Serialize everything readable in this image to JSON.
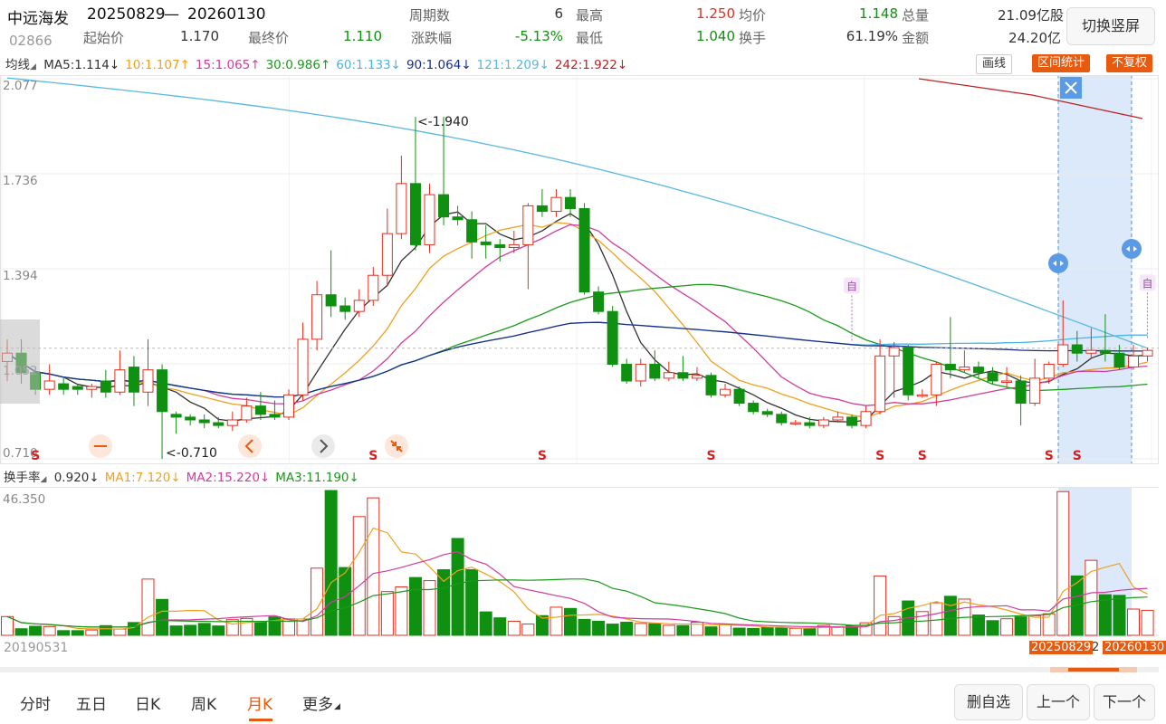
{
  "header": {
    "stock_name": "中远海发",
    "range_start": "20250829",
    "range_sep": "—",
    "range_end": "20260130",
    "code": "02866",
    "swap_button": "切换竖屏",
    "fields": [
      {
        "label": "周期数",
        "value": "6",
        "tone": "gray"
      },
      {
        "label": "最高",
        "value": "1.250",
        "tone": "up"
      },
      {
        "label": "均价",
        "value": "1.148",
        "tone": "dn"
      },
      {
        "label": "总量",
        "value": "21.09亿股",
        "tone": "gray"
      },
      {
        "label": "起始价",
        "value": "1.170",
        "tone": "gray"
      },
      {
        "label": "最终价",
        "value": "1.110",
        "tone": "dn"
      },
      {
        "label": "涨跌幅",
        "value": "-5.13%",
        "tone": "dn"
      },
      {
        "label": "最低",
        "value": "1.040",
        "tone": "dn"
      },
      {
        "label": "换手",
        "value": "61.19%",
        "tone": "gray"
      },
      {
        "label": "金额",
        "value": "24.20亿",
        "tone": "gray"
      }
    ]
  },
  "ma_bar": {
    "type_label": "均线",
    "items": [
      {
        "text": "MA5:1.114↓",
        "color": "#333333"
      },
      {
        "text": "10:1.107↑",
        "color": "#f0a020"
      },
      {
        "text": "15:1.065↑",
        "color": "#d03ca0"
      },
      {
        "text": "30:0.986↑",
        "color": "#1a9a1a"
      },
      {
        "text": "60:1.133↓",
        "color": "#4ab4e6"
      },
      {
        "text": "90:1.064↓",
        "color": "#1a2f8a"
      },
      {
        "text": "121:1.209↓",
        "color": "#58b8e0"
      },
      {
        "text": "242:1.922↓",
        "color": "#c02020"
      }
    ],
    "draw_btn": "画线",
    "range_stat_btn": "区间统计",
    "no_adjust_btn": "不复权"
  },
  "price_axis": [
    "2.077",
    "1.736",
    "1.394",
    "1.052",
    "0.710"
  ],
  "annotations": {
    "high": "<-1.940",
    "low": "<-0.710"
  },
  "signals": {
    "s": "S",
    "zi": "自"
  },
  "volume_bar": {
    "type_label": "换手率",
    "items": [
      {
        "text": "0.920↓",
        "color": "#333333"
      },
      {
        "text": "MA1:7.120↓",
        "color": "#f0a020"
      },
      {
        "text": "MA2:15.220↓",
        "color": "#d03ca0"
      },
      {
        "text": "MA3:11.190↓",
        "color": "#1a9a1a"
      }
    ],
    "axis_top": "46.350"
  },
  "dates": {
    "first": "20190531",
    "sel_start": "20250829",
    "sel_mid": "2",
    "sel_end": "20260130"
  },
  "tabs": [
    "分时",
    "五日",
    "日K",
    "周K",
    "月K",
    "更多"
  ],
  "active_tab": "月K",
  "footer": {
    "watch": "删自选",
    "prev": "上一个",
    "next": "下一个"
  },
  "colors": {
    "up": "#e03020",
    "down": "#109010",
    "accent": "#e85a10",
    "selection": "#dbe9fb"
  },
  "chart_data": {
    "type": "candlestick",
    "period": "monthly",
    "ylim": [
      0.71,
      2.077
    ],
    "y_ticks": [
      2.077,
      1.736,
      1.394,
      1.052,
      0.71
    ],
    "candles": [
      [
        1.06,
        1.09,
        1.14,
        0.99
      ],
      [
        1.09,
        1.02,
        1.14,
        0.98
      ],
      [
        1.02,
        0.96,
        1.04,
        0.94
      ],
      [
        0.96,
        0.99,
        1.05,
        0.94
      ],
      [
        0.98,
        0.96,
        1.0,
        0.94
      ],
      [
        0.97,
        0.96,
        0.98,
        0.94
      ],
      [
        0.96,
        0.97,
        0.98,
        0.93
      ],
      [
        0.99,
        0.95,
        1.03,
        0.93
      ],
      [
        0.95,
        1.03,
        1.1,
        0.94
      ],
      [
        1.04,
        0.95,
        1.08,
        0.9
      ],
      [
        0.95,
        1.03,
        1.14,
        0.9
      ],
      [
        1.03,
        0.88,
        1.05,
        0.71
      ],
      [
        0.87,
        0.86,
        0.88,
        0.8
      ],
      [
        0.86,
        0.85,
        0.87,
        0.83
      ],
      [
        0.85,
        0.84,
        0.87,
        0.82
      ],
      [
        0.84,
        0.83,
        0.86,
        0.82
      ],
      [
        0.83,
        0.85,
        0.88,
        0.81
      ],
      [
        0.85,
        0.9,
        0.93,
        0.84
      ],
      [
        0.9,
        0.87,
        0.95,
        0.85
      ],
      [
        0.87,
        0.86,
        0.92,
        0.85
      ],
      [
        0.86,
        0.94,
        0.96,
        0.85
      ],
      [
        0.94,
        1.14,
        1.2,
        0.92
      ],
      [
        1.14,
        1.3,
        1.35,
        1.1
      ],
      [
        1.3,
        1.26,
        1.46,
        1.22
      ],
      [
        1.26,
        1.24,
        1.29,
        1.21
      ],
      [
        1.24,
        1.28,
        1.32,
        1.22
      ],
      [
        1.28,
        1.37,
        1.4,
        1.26
      ],
      [
        1.37,
        1.52,
        1.61,
        1.33
      ],
      [
        1.52,
        1.7,
        1.8,
        1.5
      ],
      [
        1.7,
        1.48,
        1.94,
        1.46
      ],
      [
        1.48,
        1.66,
        1.7,
        1.45
      ],
      [
        1.66,
        1.58,
        1.94,
        1.55
      ],
      [
        1.58,
        1.57,
        1.62,
        1.55
      ],
      [
        1.57,
        1.49,
        1.6,
        1.43
      ],
      [
        1.49,
        1.48,
        1.55,
        1.43
      ],
      [
        1.48,
        1.47,
        1.5,
        1.42
      ],
      [
        1.47,
        1.48,
        1.53,
        1.45
      ],
      [
        1.48,
        1.62,
        1.63,
        1.32
      ],
      [
        1.62,
        1.6,
        1.68,
        1.58
      ],
      [
        1.6,
        1.65,
        1.68,
        1.58
      ],
      [
        1.65,
        1.61,
        1.68,
        1.58
      ],
      [
        1.61,
        1.31,
        1.63,
        1.3
      ],
      [
        1.31,
        1.24,
        1.33,
        1.23
      ],
      [
        1.24,
        1.05,
        1.26,
        1.04
      ],
      [
        1.05,
        0.99,
        1.07,
        0.98
      ],
      [
        0.99,
        1.05,
        1.07,
        0.97
      ],
      [
        1.05,
        1.0,
        1.1,
        0.99
      ],
      [
        1.0,
        1.02,
        1.06,
        0.99
      ],
      [
        1.02,
        1.0,
        1.08,
        0.99
      ],
      [
        1.0,
        1.01,
        1.04,
        0.99
      ],
      [
        1.01,
        0.94,
        1.02,
        0.93
      ],
      [
        0.94,
        0.96,
        0.98,
        0.93
      ],
      [
        0.96,
        0.91,
        0.97,
        0.9
      ],
      [
        0.91,
        0.88,
        0.92,
        0.87
      ],
      [
        0.88,
        0.87,
        0.89,
        0.86
      ],
      [
        0.87,
        0.84,
        0.88,
        0.83
      ],
      [
        0.84,
        0.84,
        0.85,
        0.83
      ],
      [
        0.84,
        0.83,
        0.86,
        0.82
      ],
      [
        0.83,
        0.85,
        0.86,
        0.82
      ],
      [
        0.85,
        0.86,
        0.88,
        0.84
      ],
      [
        0.86,
        0.83,
        0.87,
        0.82
      ],
      [
        0.83,
        0.88,
        0.9,
        0.82
      ],
      [
        0.88,
        1.08,
        1.14,
        0.87
      ],
      [
        1.08,
        1.11,
        1.13,
        0.93
      ],
      [
        1.11,
        0.94,
        1.12,
        0.92
      ],
      [
        0.94,
        0.94,
        0.96,
        0.93
      ],
      [
        0.94,
        1.05,
        1.06,
        0.9
      ],
      [
        1.05,
        1.03,
        1.22,
        1.0
      ],
      [
        1.03,
        1.04,
        1.1,
        1.02
      ],
      [
        1.04,
        1.02,
        1.06,
        1.0
      ],
      [
        1.02,
        0.99,
        1.04,
        0.98
      ],
      [
        0.99,
        0.99,
        1.04,
        0.97
      ],
      [
        0.99,
        0.91,
        1.01,
        0.83
      ],
      [
        0.91,
        1.0,
        1.07,
        0.9
      ],
      [
        1.0,
        1.05,
        1.06,
        0.98
      ],
      [
        1.05,
        1.12,
        1.28,
        1.04
      ],
      [
        1.12,
        1.09,
        1.17,
        1.06
      ],
      [
        1.09,
        1.1,
        1.18,
        1.07
      ],
      [
        1.1,
        1.09,
        1.23,
        1.06
      ],
      [
        1.09,
        1.04,
        1.12,
        1.03
      ],
      [
        1.04,
        1.08,
        1.12,
        1.03
      ],
      [
        1.08,
        1.1,
        1.11,
        1.06
      ]
    ],
    "turnover": [
      6.0,
      2.1,
      2.9,
      2.8,
      1.5,
      1.5,
      1.7,
      3.1,
      2.0,
      4.1,
      18.0,
      11.5,
      3.0,
      3.2,
      3.8,
      3.0,
      5.0,
      5.4,
      4.4,
      5.9,
      5.3,
      5.2,
      21.5,
      46.35,
      21.7,
      38.0,
      44.0,
      14.0,
      15.5,
      18.5,
      17.5,
      21.0,
      31.0,
      21.0,
      7.5,
      5.6,
      4.5,
      3.6,
      6.3,
      9.0,
      8.6,
      5.1,
      4.5,
      3.6,
      4.2,
      3.8,
      3.7,
      3.2,
      3.1,
      4.2,
      2.7,
      3.6,
      2.3,
      2.2,
      2.5,
      2.4,
      2.2,
      2.3,
      3.2,
      2.7,
      3.1,
      4.0,
      19.0,
      6.0,
      11.0,
      7.6,
      10.4,
      12.5,
      11.6,
      6.5,
      4.7,
      5.3,
      5.9,
      6.3,
      6.9,
      46.0,
      19.0,
      24.0,
      13.0,
      12.8,
      8.4,
      8.0
    ]
  }
}
